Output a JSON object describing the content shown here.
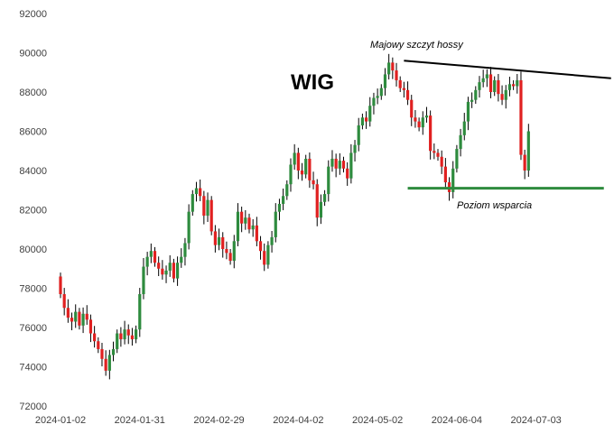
{
  "chart_data": {
    "type": "candlestick",
    "title": "WIG",
    "xlabel": "",
    "ylabel": "",
    "ylim": [
      72000,
      92000
    ],
    "y_ticks": [
      72000,
      74000,
      76000,
      78000,
      80000,
      82000,
      84000,
      86000,
      88000,
      90000,
      92000
    ],
    "x_tick_labels": [
      "2024-01-02",
      "2024-01-31",
      "2024-02-29",
      "2024-04-02",
      "2024-05-02",
      "2024-06-04",
      "2024-07-03"
    ],
    "x_tick_positions": [
      0,
      21,
      42,
      63,
      84,
      105,
      126
    ],
    "grid": false,
    "up_color": "#2e8b3e",
    "down_color": "#e02020",
    "annotations": {
      "resistance_label": "Majowy szczyt hossy",
      "support_label": "Poziom wsparcia",
      "resistance_line": {
        "from": {
          "index": 91,
          "value": 89600
        },
        "to": {
          "index": 143,
          "value": 88700
        },
        "color": "#000000"
      },
      "support_line": {
        "from": {
          "index": 92,
          "value": 83100
        },
        "to": {
          "index": 143,
          "value": 83100
        },
        "color": "#2e8b3e"
      }
    },
    "closes": [
      77700,
      77000,
      76500,
      76300,
      76800,
      76100,
      76700,
      76400,
      75700,
      75300,
      74900,
      74400,
      73800,
      74600,
      74900,
      75700,
      75400,
      75900,
      75600,
      75400,
      75900,
      77700,
      79100,
      79600,
      79900,
      79300,
      79000,
      78700,
      78900,
      79300,
      78500,
      79300,
      79600,
      80300,
      81900,
      82800,
      83100,
      82700,
      81700,
      82500,
      80900,
      80200,
      80600,
      80000,
      79800,
      79400,
      80400,
      81900,
      81300,
      81600,
      81000,
      81200,
      80400,
      79900,
      79200,
      80200,
      80600,
      81900,
      82300,
      82700,
      83300,
      84300,
      84900,
      84000,
      83800,
      84600,
      83500,
      83300,
      81600,
      82400,
      82800,
      84200,
      84600,
      84100,
      84500,
      84100,
      83600,
      84900,
      85300,
      86300,
      86700,
      86500,
      87300,
      87700,
      87800,
      88200,
      88900,
      89500,
      89100,
      88600,
      88200,
      88100,
      87600,
      86700,
      86500,
      86200,
      86700,
      86800,
      85000,
      84900,
      84700,
      84200,
      83400,
      82900,
      84100,
      85100,
      85800,
      86500,
      87500,
      87600,
      88100,
      88500,
      88700,
      88900,
      88000,
      88600,
      87900,
      87600,
      88100,
      88400,
      88300,
      88600,
      84800,
      84000,
      86000
    ]
  }
}
